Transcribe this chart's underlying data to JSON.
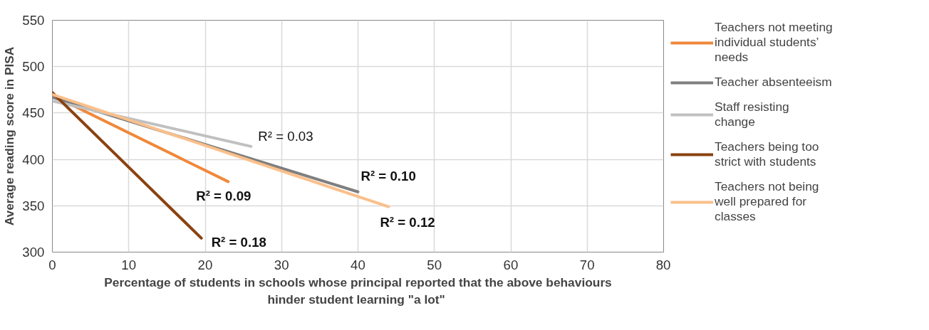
{
  "chart_data": {
    "type": "line",
    "xlabel": "Percentage of students in schools whose principal reported that the above behaviours hinder student learning  \"a lot\"",
    "ylabel": "Average reading score in PISA",
    "xlim": [
      0,
      80
    ],
    "ylim": [
      300,
      550
    ],
    "xticks": [
      0,
      10,
      20,
      30,
      40,
      50,
      60,
      70,
      80
    ],
    "yticks": [
      300,
      350,
      400,
      450,
      500,
      550
    ],
    "grid": true,
    "legend": "right",
    "marker": "none",
    "line_style": "solid",
    "series": [
      {
        "name": "Teachers not meeting individual students’ needs",
        "color": "#f0883a",
        "x": [
          0,
          23
        ],
        "values": [
          469,
          376
        ]
      },
      {
        "name": "Teacher absenteeism",
        "color": "#7f7f7f",
        "x": [
          0,
          40
        ],
        "values": [
          467,
          365
        ]
      },
      {
        "name": "Staff resisting change",
        "color": "#c0c0c0",
        "x": [
          0,
          26
        ],
        "values": [
          463,
          414
        ]
      },
      {
        "name": "Teachers being too strict with students",
        "color": "#8b4210",
        "x": [
          0,
          19.5
        ],
        "values": [
          472,
          315
        ]
      },
      {
        "name": "Teachers not being well prepared for classes",
        "color": "#fbbf8a",
        "x": [
          0,
          44
        ],
        "values": [
          470,
          349
        ]
      }
    ],
    "annotations": [
      {
        "text": "R² = 0.03",
        "x": 26,
        "y": 414
      },
      {
        "text": "R² = 0.09",
        "x": 23,
        "y": 376
      },
      {
        "text": "R² = 0.18",
        "x": 19.5,
        "y": 315
      },
      {
        "text": "R² = 0.10",
        "x": 40,
        "y": 365
      },
      {
        "text": "R² = 0.12",
        "x": 44,
        "y": 349
      }
    ]
  }
}
